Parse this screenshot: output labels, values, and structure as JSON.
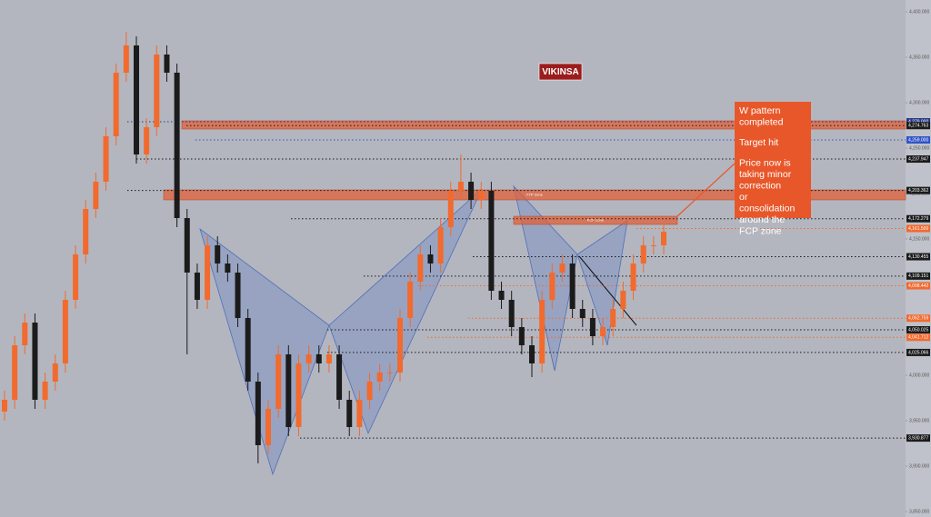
{
  "chart_data": {
    "type": "candlestick",
    "ylim": [
      3844,
      4413
    ],
    "yticks": [
      {
        "value": 3850,
        "label": "3,850.000"
      },
      {
        "value": 3900,
        "label": "3,900.000"
      },
      {
        "value": 3950,
        "label": "3,950.000"
      },
      {
        "value": 4000,
        "label": "4,000.000"
      },
      {
        "value": 4050,
        "label": "4,050.000"
      },
      {
        "value": 4100,
        "label": "4,100.000"
      },
      {
        "value": 4150,
        "label": "4,150.000"
      },
      {
        "value": 4200,
        "label": "4,200.000"
      },
      {
        "value": 4250,
        "label": "4,250.000"
      },
      {
        "value": 4300,
        "label": "4,300.000"
      },
      {
        "value": 4350,
        "label": "4,350.000"
      },
      {
        "value": 4400,
        "label": "4,400.000"
      }
    ],
    "up_color": "#f26a2e",
    "down_color": "#1b1b1b",
    "open": [
      3960,
      3973,
      4033,
      4058,
      3973,
      3993,
      4013,
      4083,
      4133,
      4183,
      4213,
      4263,
      4333,
      4363,
      4243,
      4273,
      4353,
      4333,
      4173,
      4113,
      4083,
      4143,
      4123,
      4113,
      4063,
      3993,
      3923,
      3963,
      4023,
      3943,
      4013,
      4023,
      4013,
      4023,
      3973,
      3943,
      3973,
      3993,
      4003,
      4003,
      4063,
      4103,
      4133,
      4123,
      4163,
      4203,
      4213,
      4193,
      4203,
      4093,
      4083,
      4053,
      4033,
      4013,
      4083,
      4113,
      4123,
      4073,
      4063,
      4043,
      4053,
      4073,
      4093,
      4123,
      4143,
      4143
    ],
    "high": [
      3983,
      4043,
      4068,
      4068,
      4003,
      4023,
      4093,
      4143,
      4193,
      4223,
      4273,
      4343,
      4378,
      4373,
      4283,
      4363,
      4363,
      4343,
      4183,
      4123,
      4153,
      4153,
      4133,
      4123,
      4073,
      4003,
      3973,
      4033,
      4033,
      4023,
      4033,
      4033,
      4033,
      4033,
      3983,
      3983,
      4003,
      4013,
      4013,
      4073,
      4113,
      4143,
      4143,
      4173,
      4213,
      4243,
      4223,
      4213,
      4213,
      4103,
      4093,
      4063,
      4043,
      4093,
      4123,
      4133,
      4133,
      4083,
      4073,
      4063,
      4083,
      4103,
      4133,
      4153,
      4153,
      4168
    ],
    "low": [
      3950,
      3963,
      4023,
      3963,
      3963,
      3983,
      4003,
      4073,
      4123,
      4173,
      4203,
      4253,
      4323,
      4233,
      4233,
      4263,
      4323,
      4163,
      4023,
      4073,
      4073,
      4113,
      4103,
      4053,
      3983,
      3903,
      3913,
      3953,
      3933,
      3933,
      4003,
      4003,
      4003,
      3963,
      3933,
      3933,
      3963,
      3983,
      3993,
      3993,
      4053,
      4093,
      4113,
      4113,
      4153,
      4193,
      4183,
      4183,
      4083,
      4073,
      4043,
      4023,
      3998,
      4003,
      4073,
      4103,
      4063,
      4053,
      4033,
      4033,
      4043,
      4063,
      4083,
      4113,
      4133,
      4133
    ],
    "close": [
      3973,
      4033,
      4058,
      3973,
      3993,
      4013,
      4083,
      4133,
      4183,
      4213,
      4263,
      4333,
      4363,
      4243,
      4273,
      4353,
      4333,
      4173,
      4113,
      4083,
      4143,
      4123,
      4113,
      4063,
      3993,
      3923,
      3963,
      4023,
      3943,
      4013,
      4023,
      4013,
      4023,
      3973,
      3943,
      3973,
      3993,
      4003,
      4003,
      4063,
      4103,
      4133,
      4123,
      4163,
      4203,
      4213,
      4193,
      4203,
      4093,
      4083,
      4053,
      4033,
      4013,
      4083,
      4113,
      4123,
      4073,
      4063,
      4043,
      4053,
      4073,
      4093,
      4123,
      4143,
      4143,
      4158
    ],
    "zones": [
      {
        "low": 4271,
        "high": 4280,
        "color": "#e0603a"
      },
      {
        "low": 4193,
        "high": 4204,
        "color": "#e0603a",
        "label": "FTP Zone"
      },
      {
        "low": 4166,
        "high": 4175,
        "color": "#e0603a",
        "label": "FCP Zone"
      }
    ],
    "levels": [
      {
        "value": 4279.0,
        "label": "4,279.000",
        "color": "#2a3a8a"
      },
      {
        "value": 4274.763,
        "label": "4,274.763",
        "color": "#1b1b1b"
      },
      {
        "value": 4259.0,
        "label": "4,259.000",
        "color": "#2f54c8"
      },
      {
        "value": 4237.947,
        "label": "4,237.947",
        "color": "#1b1b1b"
      },
      {
        "value": 4203.362,
        "label": "4,203.362",
        "color": "#1b1b1b"
      },
      {
        "value": 4172.279,
        "label": "4,172.279",
        "color": "#1b1b1b"
      },
      {
        "value": 4161.5,
        "label": "4,161.500",
        "color": "#f26a2e"
      },
      {
        "value": 4130.455,
        "label": "4,130.455",
        "color": "#1b1b1b"
      },
      {
        "value": 4109.151,
        "label": "4,109.151",
        "color": "#1b1b1b"
      },
      {
        "value": 4098.442,
        "label": "4,098.442",
        "color": "#f26a2e"
      },
      {
        "value": 4062.759,
        "label": "4,062.759",
        "color": "#f26a2e"
      },
      {
        "value": 4050.025,
        "label": "4,050.025",
        "color": "#1b1b1b"
      },
      {
        "value": 4041.712,
        "label": "4,041.712",
        "color": "#f26a2e"
      },
      {
        "value": 4025.066,
        "label": "4,025.066",
        "color": "#1b1b1b"
      },
      {
        "value": 3930.877,
        "label": "3,930.877",
        "color": "#1b1b1b"
      }
    ],
    "badge": "VIKINSA",
    "annotation": [
      "W pattern completed",
      "Target hit",
      "Price now is taking minor correction or consolidation around the FCP zone"
    ]
  }
}
